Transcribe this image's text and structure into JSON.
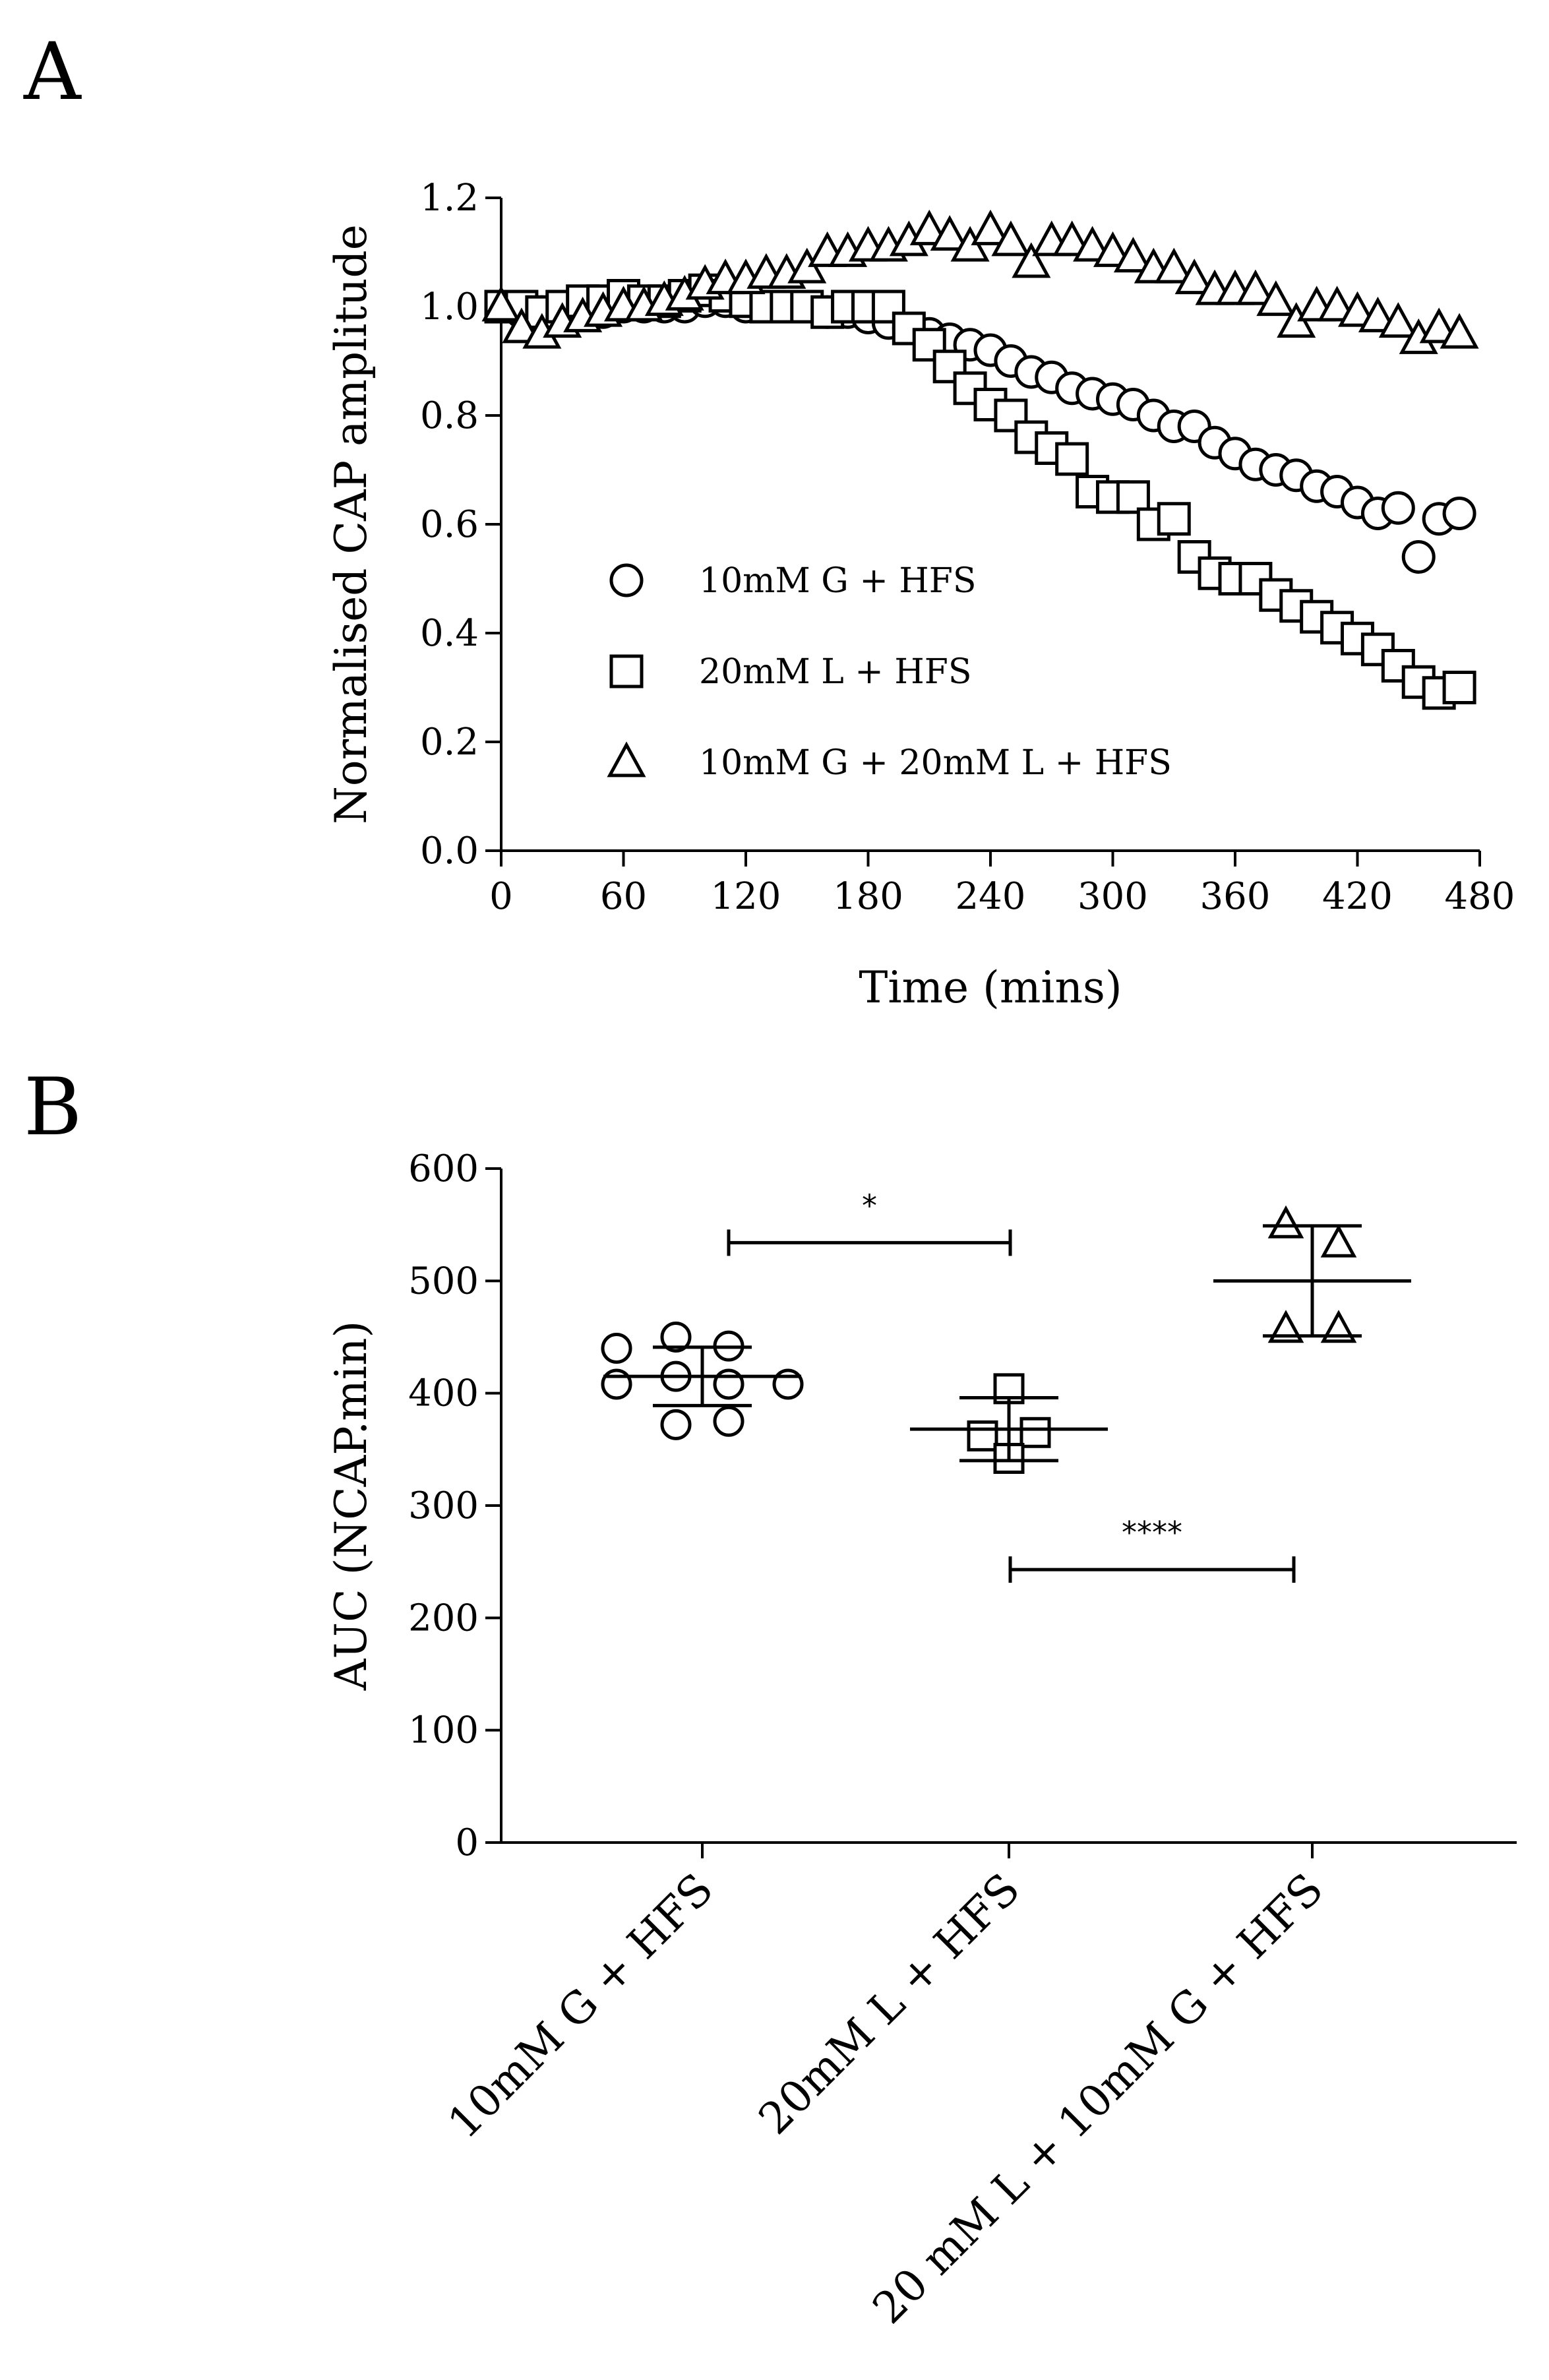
{
  "chart_data": [
    {
      "type": "scatter",
      "panel_label": "A",
      "xlabel": "Time (mins)",
      "ylabel": "Normalised CAP amplitude",
      "xlim": [
        0,
        480
      ],
      "ylim": [
        0.0,
        1.2
      ],
      "xticks": [
        "0",
        "60",
        "120",
        "180",
        "240",
        "300",
        "360",
        "420",
        "480"
      ],
      "yticks": [
        "0.0",
        "0.2",
        "0.4",
        "0.6",
        "0.8",
        "1.0",
        "1.2"
      ],
      "legend_position": "center-left",
      "series": [
        {
          "name": "10mM G + HFS",
          "marker": "circle",
          "x": [
            0,
            10,
            20,
            30,
            40,
            50,
            60,
            70,
            80,
            90,
            100,
            110,
            120,
            130,
            140,
            150,
            160,
            170,
            180,
            190,
            200,
            210,
            220,
            230,
            240,
            250,
            260,
            270,
            280,
            290,
            300,
            310,
            320,
            330,
            340,
            350,
            360,
            370,
            380,
            390,
            400,
            410,
            420,
            430,
            440,
            450,
            460,
            470
          ],
          "y": [
            1.0,
            0.99,
            0.99,
            0.99,
            0.99,
            0.99,
            1.0,
            1.0,
            1.0,
            1.0,
            1.01,
            1.01,
            1.0,
            1.0,
            1.0,
            1.0,
            0.99,
            0.99,
            0.98,
            0.97,
            0.96,
            0.95,
            0.94,
            0.93,
            0.92,
            0.9,
            0.88,
            0.87,
            0.85,
            0.84,
            0.83,
            0.82,
            0.8,
            0.78,
            0.78,
            0.75,
            0.73,
            0.71,
            0.7,
            0.69,
            0.67,
            0.66,
            0.64,
            0.62,
            0.63,
            0.54,
            0.61,
            0.62
          ]
        },
        {
          "name": "20mM L + HFS",
          "marker": "square",
          "x": [
            0,
            10,
            20,
            30,
            40,
            50,
            60,
            70,
            80,
            90,
            100,
            110,
            120,
            130,
            140,
            150,
            160,
            170,
            180,
            190,
            200,
            210,
            220,
            230,
            240,
            250,
            260,
            270,
            280,
            290,
            300,
            310,
            320,
            330,
            340,
            350,
            360,
            370,
            380,
            390,
            400,
            410,
            420,
            430,
            440,
            450,
            460,
            470
          ],
          "y": [
            1.0,
            1.0,
            0.99,
            1.0,
            1.01,
            1.01,
            1.02,
            1.01,
            1.01,
            1.02,
            1.03,
            1.02,
            1.01,
            1.0,
            1.0,
            1.0,
            0.99,
            1.0,
            1.0,
            1.0,
            0.96,
            0.93,
            0.89,
            0.85,
            0.82,
            0.8,
            0.76,
            0.74,
            0.72,
            0.66,
            0.65,
            0.65,
            0.6,
            0.61,
            0.54,
            0.51,
            0.5,
            0.5,
            0.47,
            0.45,
            0.43,
            0.41,
            0.39,
            0.37,
            0.34,
            0.31,
            0.29,
            0.3
          ]
        },
        {
          "name": "10mM G + 20mM L + HFS",
          "marker": "triangle",
          "x": [
            0,
            10,
            20,
            30,
            40,
            50,
            60,
            70,
            80,
            90,
            100,
            110,
            120,
            130,
            140,
            150,
            160,
            170,
            180,
            190,
            200,
            210,
            220,
            230,
            240,
            250,
            260,
            270,
            280,
            290,
            300,
            310,
            320,
            330,
            340,
            350,
            360,
            370,
            380,
            390,
            400,
            410,
            420,
            430,
            440,
            450,
            460,
            470
          ],
          "y": [
            1.0,
            0.96,
            0.95,
            0.97,
            0.98,
            0.99,
            1.0,
            1.0,
            1.01,
            1.02,
            1.04,
            1.05,
            1.05,
            1.06,
            1.06,
            1.07,
            1.1,
            1.1,
            1.11,
            1.11,
            1.12,
            1.14,
            1.13,
            1.11,
            1.14,
            1.12,
            1.08,
            1.12,
            1.12,
            1.11,
            1.1,
            1.09,
            1.07,
            1.07,
            1.05,
            1.03,
            1.03,
            1.03,
            1.01,
            0.97,
            1.0,
            1.0,
            0.99,
            0.98,
            0.97,
            0.94,
            0.96,
            0.95
          ]
        }
      ]
    },
    {
      "type": "scatter",
      "panel_label": "B",
      "ylabel": "AUC (NCAP.min)",
      "xlabel": "",
      "ylim": [
        0,
        600
      ],
      "yticks": [
        "0",
        "100",
        "200",
        "300",
        "400",
        "500",
        "600"
      ],
      "categories": [
        "10mM G + HFS",
        "20mM L + HFS",
        "20 mM L + 10mM G + HFS"
      ],
      "groups": [
        {
          "name": "10mM G + HFS",
          "marker": "circle",
          "points": [
            440,
            450,
            442,
            408,
            415,
            408,
            408,
            372,
            375
          ],
          "mean": 415,
          "sd_low": 389,
          "sd_high": 441
        },
        {
          "name": "20mM L + HFS",
          "marker": "square",
          "points": [
            404,
            362,
            365,
            342
          ],
          "mean": 368,
          "sd_low": 340,
          "sd_high": 396
        },
        {
          "name": "20 mM L + 10mM G + HFS",
          "marker": "triangle",
          "points": [
            550,
            533,
            457,
            457
          ],
          "mean": 500,
          "sd_low": 451,
          "sd_high": 549
        }
      ],
      "significance": [
        {
          "from": 0,
          "to": 1,
          "label": "*",
          "y": 534
        },
        {
          "from": 1,
          "to": 2,
          "label": "****",
          "y": 243
        }
      ]
    }
  ]
}
